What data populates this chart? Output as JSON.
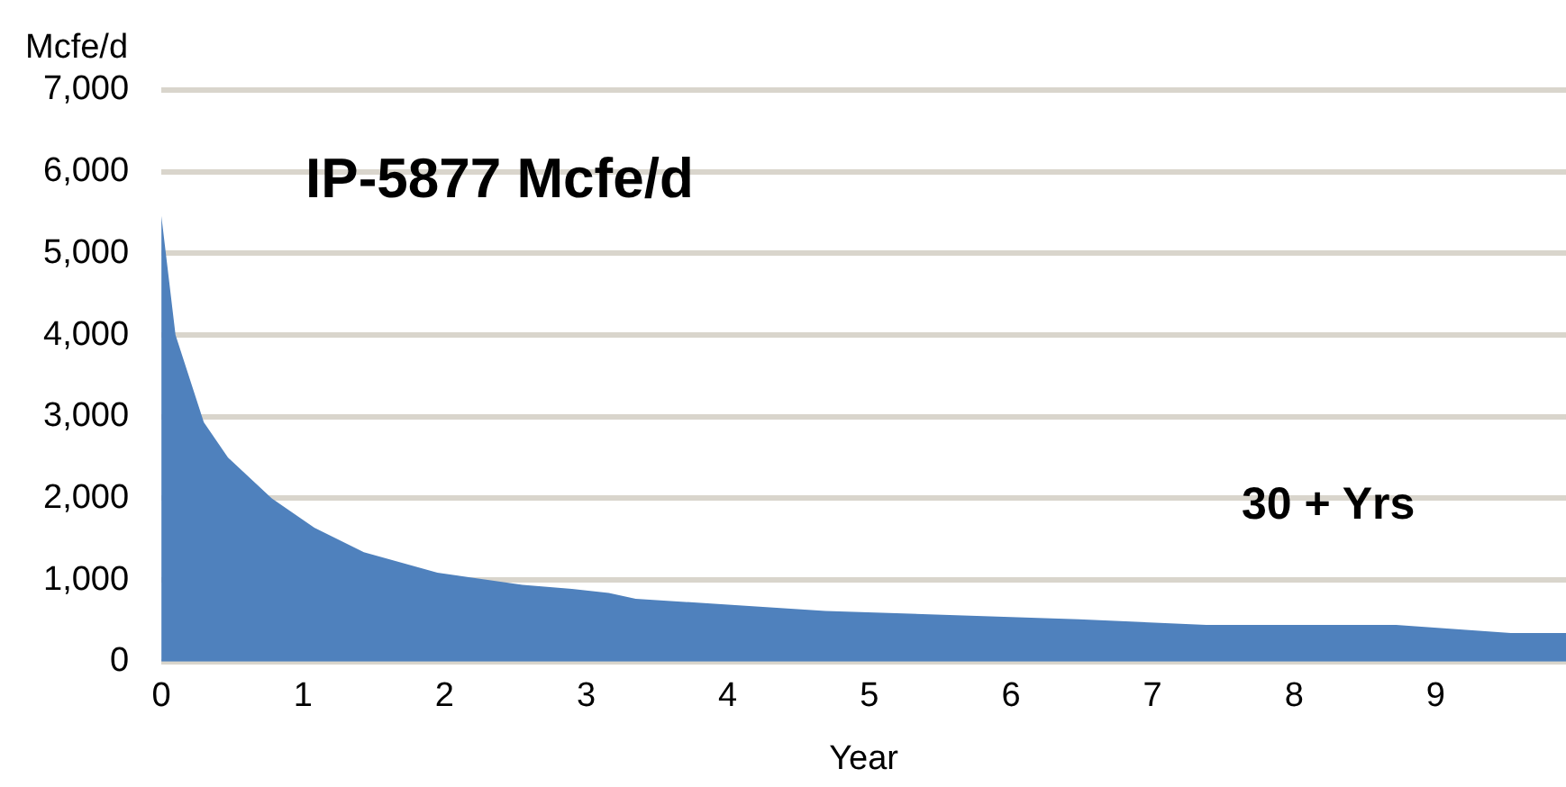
{
  "chart_data": {
    "type": "area",
    "title": "IP-5877 Mcfe/d",
    "xlabel": "Year",
    "ylabel": "Mcfe/d",
    "annotations": [
      "30 + Yrs"
    ],
    "x": [
      0,
      0.1,
      0.3,
      0.47,
      0.78,
      1.08,
      1.43,
      1.95,
      2.55,
      2.9,
      3.16,
      3.35,
      4.69,
      6.48,
      7.38,
      8.72,
      9.53,
      9.92
    ],
    "series": [
      {
        "color": "#4f81bd",
        "values": [
          5460,
          4000,
          2930,
          2500,
          2000,
          1640,
          1340,
          1090,
          940,
          890,
          840,
          770,
          620,
          520,
          450,
          450,
          350,
          350
        ]
      }
    ],
    "xlim": [
      0,
      9.92
    ],
    "xticks": [
      0,
      1,
      2,
      3,
      4,
      5,
      6,
      7,
      8,
      9
    ],
    "ylim": [
      0,
      7000
    ],
    "yticks": [
      0,
      {
        "value": 1000,
        "label": "1,000"
      },
      {
        "value": 2000,
        "label": "2,000"
      },
      {
        "value": 3000,
        "label": "3,000"
      },
      {
        "value": 4000,
        "label": "4,000"
      },
      {
        "value": 5000,
        "label": "5,000"
      },
      {
        "value": 6000,
        "label": "6,000"
      },
      {
        "value": 7000,
        "label": "7,000"
      }
    ],
    "grid": "y",
    "legend": false
  }
}
